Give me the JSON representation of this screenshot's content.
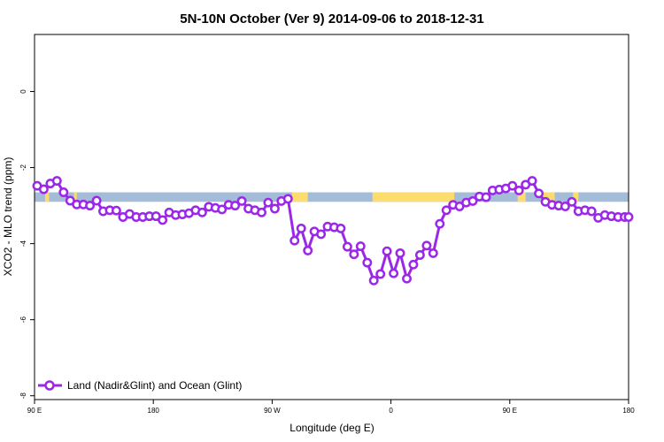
{
  "chart_data": {
    "type": "line",
    "title": "5N-10N October (Ver 9)   2014-09-06 to 2018-12-31",
    "xlabel": "Longitude (deg E)",
    "ylabel": "XCO2 - MLO trend (ppm)",
    "x_ticks": [
      {
        "value": 90,
        "label": "90 E"
      },
      {
        "value": 180,
        "label": "180"
      },
      {
        "value": 270,
        "label": "90 W"
      },
      {
        "value": 360,
        "label": "0"
      },
      {
        "value": 450,
        "label": "90 E"
      },
      {
        "value": 540,
        "label": "180"
      }
    ],
    "y_ticks": [
      {
        "value": 0,
        "label": "0"
      },
      {
        "value": -2,
        "label": "-2"
      },
      {
        "value": -4,
        "label": "-4"
      },
      {
        "value": -6,
        "label": "-6"
      },
      {
        "value": -8,
        "label": "-8"
      }
    ],
    "xlim": [
      90,
      540
    ],
    "ylim": [
      -8.1,
      1.5
    ],
    "grid": false,
    "legend_position": "bottom-left",
    "map_band": {
      "y_top": -2.65,
      "y_bottom": -2.9,
      "ocean_color": "#a5bcd8",
      "land_color": "#fddc6e",
      "land_segments": [
        [
          98,
          101
        ],
        [
          120,
          122
        ],
        [
          285,
          297
        ],
        [
          346,
          408
        ],
        [
          456,
          462
        ],
        [
          474,
          484
        ],
        [
          498,
          502
        ]
      ]
    },
    "series": [
      {
        "name": "Land (Nadir&Glint) and Ocean (Glint)",
        "color": "#9b27e8",
        "x": [
          92,
          97,
          102,
          107,
          112,
          117,
          122,
          127,
          132,
          137,
          142,
          147,
          152,
          157,
          162,
          167,
          172,
          177,
          182,
          187,
          192,
          197,
          202,
          207,
          212,
          217,
          222,
          227,
          232,
          237,
          242,
          247,
          252,
          257,
          262,
          267,
          272,
          277,
          282,
          287,
          292,
          297,
          302,
          307,
          312,
          317,
          322,
          327,
          332,
          337,
          342,
          347,
          352,
          357,
          362,
          367,
          372,
          377,
          382,
          387,
          392,
          397,
          402,
          407,
          412,
          417,
          422,
          427,
          432,
          437,
          442,
          447,
          452,
          457,
          462,
          467,
          472,
          477,
          482,
          487,
          492,
          497,
          502,
          507,
          512,
          517,
          522,
          527,
          532,
          537,
          542
        ],
        "y": [
          -2.48,
          -2.57,
          -2.42,
          -2.35,
          -2.65,
          -2.87,
          -2.97,
          -2.97,
          -3.0,
          -2.87,
          -3.15,
          -3.12,
          -3.13,
          -3.3,
          -3.22,
          -3.3,
          -3.3,
          -3.28,
          -3.28,
          -3.38,
          -3.18,
          -3.25,
          -3.23,
          -3.2,
          -3.12,
          -3.18,
          -3.03,
          -3.06,
          -3.1,
          -2.98,
          -3.0,
          -2.88,
          -3.08,
          -3.12,
          -3.18,
          -2.92,
          -3.08,
          -2.88,
          -2.82,
          -3.92,
          -3.6,
          -4.18,
          -3.68,
          -3.75,
          -3.55,
          -3.57,
          -3.6,
          -4.08,
          -4.28,
          -4.07,
          -4.5,
          -4.97,
          -4.8,
          -4.2,
          -4.78,
          -4.25,
          -4.92,
          -4.55,
          -4.3,
          -4.05,
          -4.25,
          -3.48,
          -3.12,
          -2.98,
          -3.02,
          -2.92,
          -2.88,
          -2.76,
          -2.78,
          -2.6,
          -2.58,
          -2.55,
          -2.48,
          -2.6,
          -2.45,
          -2.35,
          -2.68,
          -2.9,
          -2.98,
          -3.0,
          -3.02,
          -2.9,
          -3.15,
          -3.12,
          -3.15,
          -3.32,
          -3.25,
          -3.28,
          -3.3,
          -3.3,
          -3.3
        ]
      }
    ]
  }
}
